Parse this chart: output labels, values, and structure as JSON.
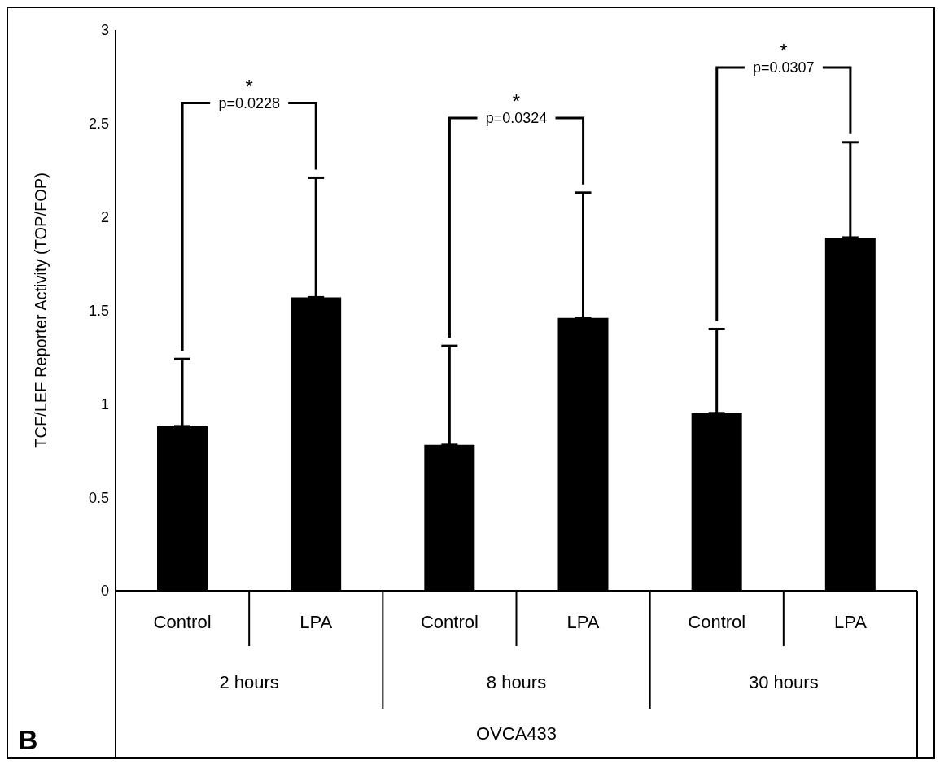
{
  "chart_data": {
    "type": "bar",
    "categories": [
      "Control",
      "LPA",
      "Control",
      "LPA",
      "Control",
      "LPA"
    ],
    "values": [
      0.88,
      1.57,
      0.78,
      1.46,
      0.95,
      1.89
    ],
    "errors": [
      [
        0.88,
        1.24
      ],
      [
        1.57,
        2.21
      ],
      [
        0.78,
        1.31
      ],
      [
        1.46,
        2.13
      ],
      [
        0.95,
        1.4
      ],
      [
        1.89,
        2.4
      ]
    ],
    "color": "#000000",
    "ylabel": "TCF/LEF Reporter Activity (TOP/FOP)",
    "ylim": [
      0,
      3
    ],
    "yticks": [
      0,
      0.5,
      1,
      1.5,
      2,
      2.5,
      3
    ],
    "annotations": [
      "p=0.0228",
      "p=0.0324",
      "p=0.0307",
      "*",
      "*",
      "*",
      "2 hours",
      "8 hours",
      "30 hours",
      "B",
      "OVCA433"
    ]
  }
}
